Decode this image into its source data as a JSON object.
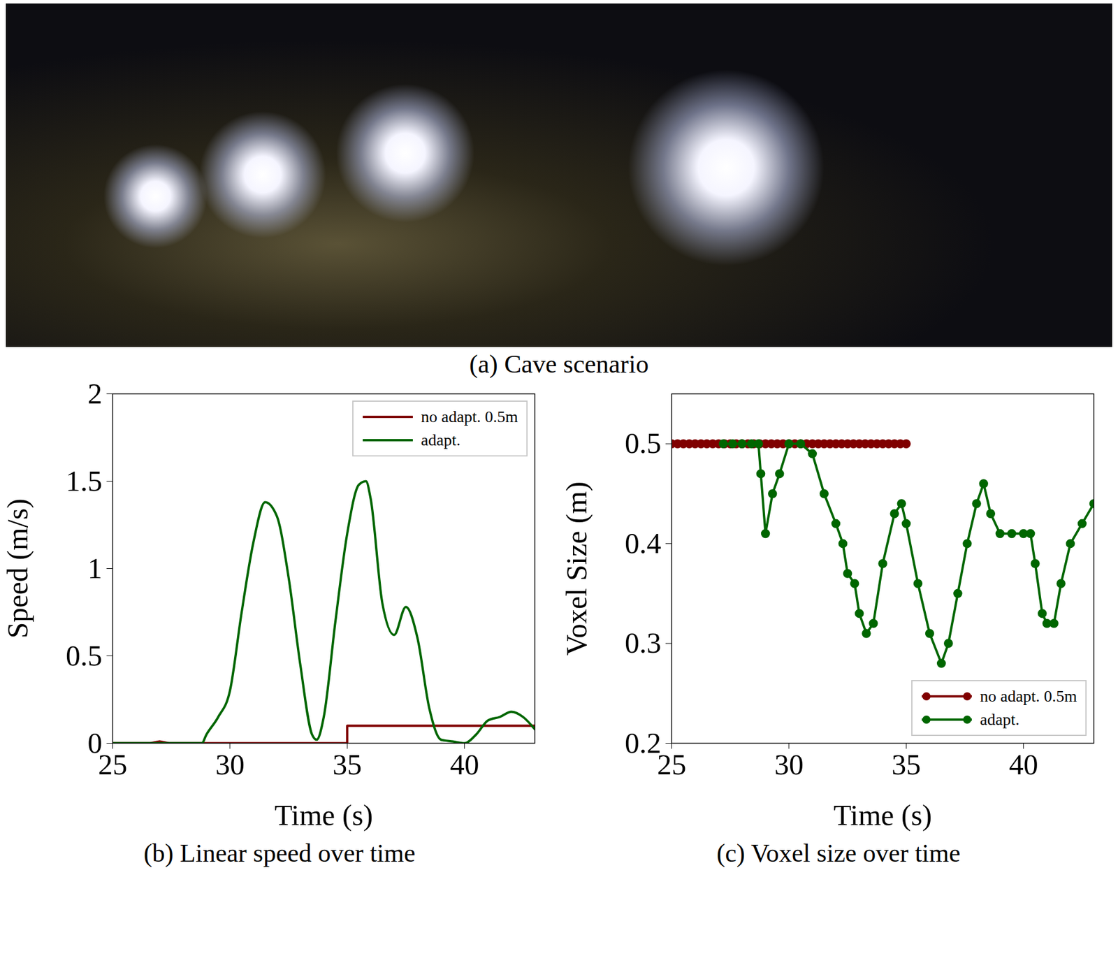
{
  "image_panel": {
    "caption": "(a) Cave scenario"
  },
  "chart_data": [
    {
      "type": "line",
      "caption": "(b) Linear speed over time",
      "x_label": "Time (s)",
      "y_label": "Speed (m/s)",
      "xlim": [
        25,
        43
      ],
      "xticks": [
        25,
        30,
        35,
        40
      ],
      "ylim": [
        0,
        2
      ],
      "yticks": [
        0,
        0.5,
        1,
        1.5,
        2
      ],
      "grid": false,
      "legend": "top-right",
      "series": [
        {
          "name": "no adapt. 0.5m",
          "color": "#800000",
          "line_style": "solid",
          "x": [
            25,
            26.6,
            27,
            27.4,
            35,
            35,
            43
          ],
          "values": [
            0,
            0,
            0.01,
            0,
            0,
            0.1,
            0.1
          ]
        },
        {
          "name": "adapt.",
          "color": "#006600",
          "line_style": "smooth",
          "x": [
            25,
            26,
            27,
            28,
            28.8,
            29,
            29.5,
            30,
            30.5,
            31,
            31.5,
            32,
            32.5,
            33,
            33.5,
            33.7,
            34,
            34.5,
            35,
            35.5,
            35.8,
            36,
            36.5,
            37,
            37.5,
            38,
            38.5,
            39,
            39.5,
            40,
            40.5,
            41,
            41.5,
            42,
            42.5,
            43
          ],
          "values": [
            0,
            0,
            0,
            0,
            0,
            0.05,
            0.15,
            0.3,
            0.75,
            1.15,
            1.38,
            1.3,
            0.95,
            0.45,
            0.05,
            0.02,
            0.15,
            0.7,
            1.2,
            1.48,
            1.5,
            1.4,
            0.8,
            0.62,
            0.78,
            0.6,
            0.2,
            0.02,
            0.01,
            0,
            0.05,
            0.13,
            0.15,
            0.18,
            0.15,
            0.08
          ]
        }
      ]
    },
    {
      "type": "line",
      "caption": "(c) Voxel size over time",
      "x_label": "Time (s)",
      "y_label": "Voxel Size (m)",
      "xlim": [
        25,
        43
      ],
      "xticks": [
        25,
        30,
        35,
        40
      ],
      "ylim": [
        0.2,
        0.55
      ],
      "yticks": [
        0.2,
        0.3,
        0.4,
        0.5
      ],
      "grid": false,
      "legend": "bottom-right",
      "series": [
        {
          "name": "no adapt. 0.5m",
          "color": "#800000",
          "line_style": "solid",
          "marker": "circle",
          "x": [
            25,
            25.25,
            25.5,
            25.75,
            26,
            26.25,
            26.5,
            26.75,
            27,
            27.25,
            27.5,
            27.75,
            28,
            28.25,
            28.5,
            28.75,
            29,
            29.25,
            29.5,
            29.75,
            30,
            30.25,
            30.5,
            30.75,
            31,
            31.25,
            31.5,
            31.75,
            32,
            32.25,
            32.5,
            32.75,
            33,
            33.25,
            33.5,
            33.75,
            34,
            34.25,
            34.5,
            34.75,
            35
          ],
          "values": [
            0.5,
            0.5,
            0.5,
            0.5,
            0.5,
            0.5,
            0.5,
            0.5,
            0.5,
            0.5,
            0.5,
            0.5,
            0.5,
            0.5,
            0.5,
            0.5,
            0.5,
            0.5,
            0.5,
            0.5,
            0.5,
            0.5,
            0.5,
            0.5,
            0.5,
            0.5,
            0.5,
            0.5,
            0.5,
            0.5,
            0.5,
            0.5,
            0.5,
            0.5,
            0.5,
            0.5,
            0.5,
            0.5,
            0.5,
            0.5,
            0.5
          ]
        },
        {
          "name": "adapt.",
          "color": "#006600",
          "line_style": "solid",
          "marker": "circle",
          "x": [
            27.2,
            27.6,
            28,
            28.4,
            28.7,
            28.8,
            29,
            29.3,
            29.6,
            30,
            30.5,
            31,
            31.5,
            32,
            32.3,
            32.5,
            32.8,
            33,
            33.3,
            33.6,
            34,
            34.5,
            34.8,
            35,
            35.5,
            36,
            36.5,
            36.8,
            37.2,
            37.6,
            38,
            38.3,
            38.6,
            39,
            39.5,
            40,
            40.3,
            40.5,
            40.8,
            41,
            41.3,
            41.6,
            42,
            42.5,
            43
          ],
          "values": [
            0.5,
            0.5,
            0.5,
            0.5,
            0.5,
            0.47,
            0.41,
            0.45,
            0.47,
            0.5,
            0.5,
            0.49,
            0.45,
            0.42,
            0.4,
            0.37,
            0.36,
            0.33,
            0.31,
            0.32,
            0.38,
            0.43,
            0.44,
            0.42,
            0.36,
            0.31,
            0.28,
            0.3,
            0.35,
            0.4,
            0.44,
            0.46,
            0.43,
            0.41,
            0.41,
            0.41,
            0.41,
            0.38,
            0.33,
            0.32,
            0.32,
            0.36,
            0.4,
            0.42,
            0.44
          ]
        }
      ]
    }
  ]
}
